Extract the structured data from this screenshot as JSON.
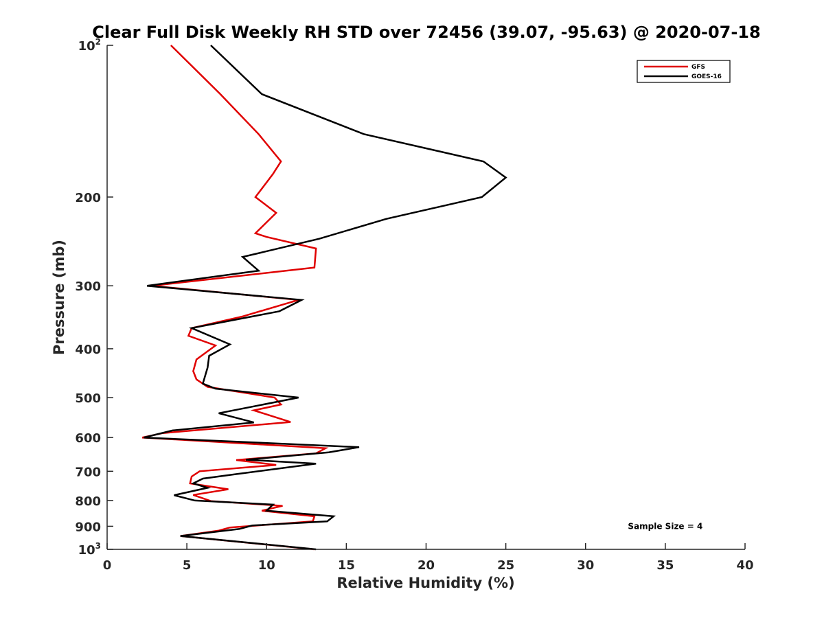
{
  "chart_data": {
    "type": "line",
    "title": "Clear Full Disk Weekly RH STD over 72456 (39.07, -95.63) @ 2020-07-18",
    "xlabel": "Relative Humidity (%)",
    "ylabel": "Pressure (mb)",
    "xlim": [
      0,
      40
    ],
    "ylim": [
      100,
      1000
    ],
    "yscale": "log",
    "y_reversed": true,
    "x_ticks": [
      {
        "value": 0,
        "label": "0"
      },
      {
        "value": 5,
        "label": "5"
      },
      {
        "value": 10,
        "label": "10"
      },
      {
        "value": 15,
        "label": "15"
      },
      {
        "value": 20,
        "label": "20"
      },
      {
        "value": 25,
        "label": "25"
      },
      {
        "value": 30,
        "label": "30"
      },
      {
        "value": 35,
        "label": "35"
      },
      {
        "value": 40,
        "label": "40"
      }
    ],
    "y_ticks": [
      {
        "value": 100,
        "base": "10",
        "exp": "2"
      },
      {
        "value": 200,
        "label": "200"
      },
      {
        "value": 300,
        "label": "300"
      },
      {
        "value": 400,
        "label": "400"
      },
      {
        "value": 500,
        "label": "500"
      },
      {
        "value": 600,
        "label": "600"
      },
      {
        "value": 700,
        "label": "700"
      },
      {
        "value": 800,
        "label": "800"
      },
      {
        "value": 900,
        "label": "900"
      },
      {
        "value": 1000,
        "base": "10",
        "exp": "3"
      }
    ],
    "grid": false,
    "legend_position": "top-right",
    "series": [
      {
        "name": "GFS",
        "color": "#e00000",
        "points": [
          [
            4.0,
            100
          ],
          [
            7.1,
            125
          ],
          [
            9.5,
            150
          ],
          [
            10.9,
            170
          ],
          [
            10.4,
            180
          ],
          [
            9.3,
            200
          ],
          [
            10.6,
            215
          ],
          [
            9.3,
            236
          ],
          [
            10.0,
            240
          ],
          [
            13.1,
            253
          ],
          [
            13.0,
            276
          ],
          [
            2.8,
            300
          ],
          [
            12.0,
            320
          ],
          [
            8.5,
            345
          ],
          [
            5.3,
            364
          ],
          [
            5.1,
            377
          ],
          [
            6.8,
            394
          ],
          [
            5.6,
            420
          ],
          [
            5.4,
            443
          ],
          [
            5.6,
            460
          ],
          [
            6.3,
            476
          ],
          [
            10.5,
            500
          ],
          [
            10.9,
            516
          ],
          [
            9.2,
            530
          ],
          [
            11.5,
            559
          ],
          [
            3.5,
            588
          ],
          [
            2.2,
            600
          ],
          [
            13.7,
            630
          ],
          [
            13.1,
            645
          ],
          [
            8.1,
            665
          ],
          [
            10.6,
            680
          ],
          [
            5.8,
            700
          ],
          [
            5.3,
            717
          ],
          [
            5.2,
            740
          ],
          [
            7.6,
            760
          ],
          [
            5.4,
            780
          ],
          [
            6.5,
            802
          ],
          [
            11.0,
            820
          ],
          [
            9.7,
            838
          ],
          [
            13.0,
            860
          ],
          [
            12.9,
            880
          ],
          [
            7.7,
            905
          ],
          [
            7.0,
            918
          ],
          [
            4.6,
            941
          ],
          [
            13.0,
            1000
          ]
        ]
      },
      {
        "name": "GOES-16",
        "color": "#000000",
        "points": [
          [
            6.5,
            100
          ],
          [
            9.7,
            125
          ],
          [
            16.1,
            150
          ],
          [
            23.6,
            170
          ],
          [
            25.0,
            183
          ],
          [
            23.5,
            200
          ],
          [
            17.5,
            221
          ],
          [
            13.3,
            242
          ],
          [
            8.5,
            263
          ],
          [
            9.5,
            280
          ],
          [
            2.5,
            300
          ],
          [
            12.2,
            320
          ],
          [
            10.8,
            337
          ],
          [
            5.3,
            364
          ],
          [
            7.7,
            392
          ],
          [
            6.4,
            413
          ],
          [
            6.3,
            436
          ],
          [
            6.0,
            469
          ],
          [
            6.8,
            480
          ],
          [
            12.0,
            500
          ],
          [
            7.0,
            537
          ],
          [
            9.2,
            560
          ],
          [
            4.1,
            581
          ],
          [
            2.3,
            600
          ],
          [
            15.8,
            627
          ],
          [
            13.9,
            642
          ],
          [
            8.7,
            664
          ],
          [
            13.1,
            676
          ],
          [
            8.0,
            710
          ],
          [
            6.0,
            724
          ],
          [
            5.4,
            740
          ],
          [
            6.3,
            755
          ],
          [
            4.2,
            781
          ],
          [
            5.5,
            800
          ],
          [
            10.4,
            815
          ],
          [
            10.0,
            838
          ],
          [
            14.2,
            860
          ],
          [
            13.8,
            880
          ],
          [
            9.1,
            897
          ],
          [
            8.3,
            911
          ],
          [
            4.6,
            941
          ],
          [
            13.1,
            1000
          ]
        ]
      }
    ],
    "annotations": [
      {
        "text": "Sample Size = 4",
        "x": 35,
        "y": 900
      }
    ]
  }
}
